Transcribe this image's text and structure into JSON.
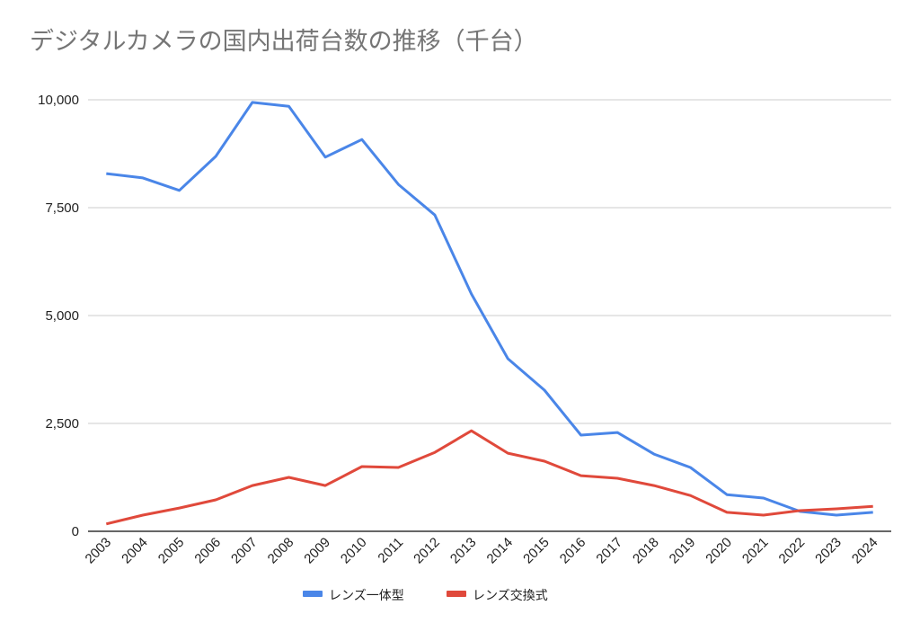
{
  "chart_data": {
    "type": "line",
    "title": "デジタルカメラの国内出荷台数の推移（千台）",
    "xlabel": "",
    "ylabel": "",
    "ylim": [
      0,
      10000
    ],
    "yticks": [
      0,
      2500,
      5000,
      7500,
      10000
    ],
    "ytick_labels": [
      "0",
      "2,500",
      "5,000",
      "7,500",
      "10,000"
    ],
    "grid": true,
    "legend_position": "bottom",
    "x": [
      "2003",
      "2004",
      "2005",
      "2006",
      "2007",
      "2008",
      "2009",
      "2010",
      "2011",
      "2012",
      "2013",
      "2014",
      "2015",
      "2016",
      "2017",
      "2018",
      "2019",
      "2020",
      "2021",
      "2022",
      "2023",
      "2024"
    ],
    "series": [
      {
        "name": "レンズ一体型",
        "color": "#4a86e8",
        "values": [
          8290,
          8190,
          7900,
          8690,
          9940,
          9850,
          8670,
          9080,
          8040,
          7330,
          5500,
          4000,
          3270,
          2230,
          2290,
          1790,
          1480,
          850,
          770,
          460,
          375,
          440
        ]
      },
      {
        "name": "レンズ交換式",
        "color": "#e0493b",
        "values": [
          170,
          375,
          540,
          730,
          1060,
          1250,
          1060,
          1500,
          1480,
          1830,
          2330,
          1810,
          1625,
          1290,
          1230,
          1060,
          830,
          440,
          375,
          480,
          520,
          580
        ]
      }
    ]
  }
}
